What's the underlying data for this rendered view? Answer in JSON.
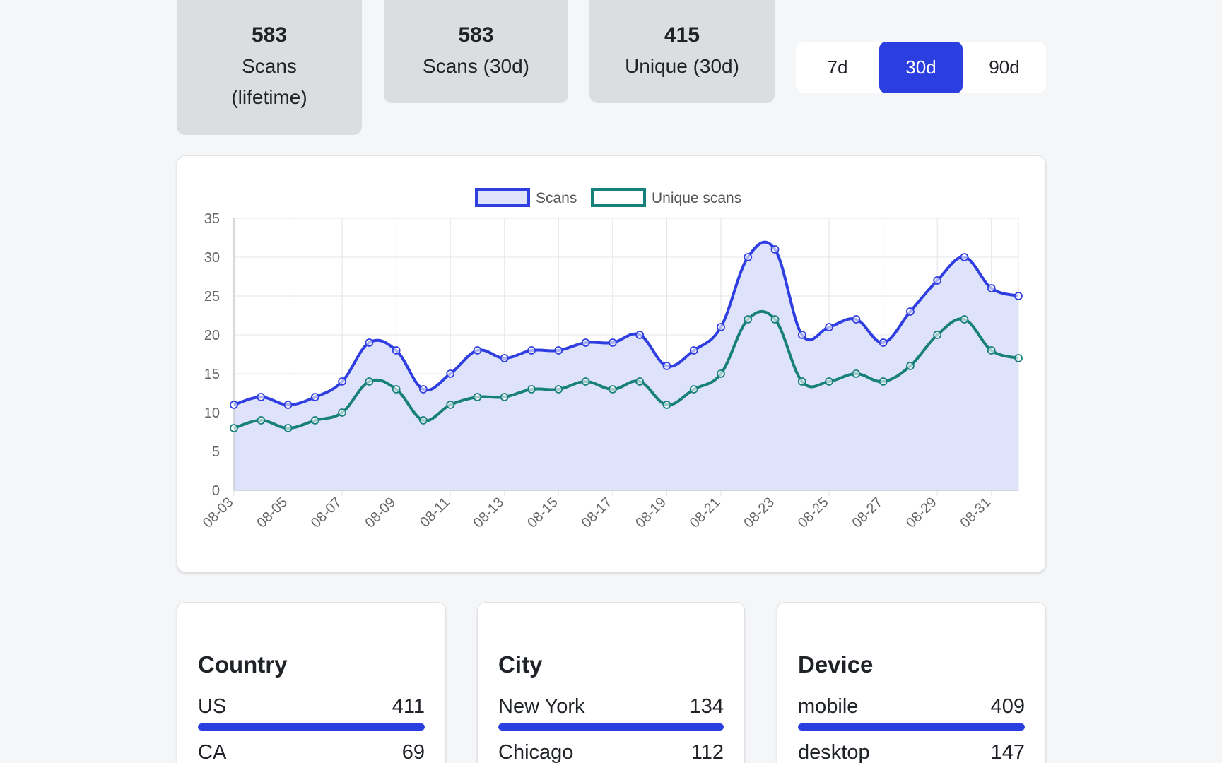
{
  "stats": [
    {
      "value": "583",
      "label": "Scans",
      "label2": "(lifetime)"
    },
    {
      "value": "583",
      "label": "Scans (30d)"
    },
    {
      "value": "415",
      "label": "Unique (30d)"
    }
  ],
  "range": {
    "options": [
      "7d",
      "30d",
      "90d"
    ],
    "selected": "30d"
  },
  "colors": {
    "accent": "#2b3fe0",
    "scans_line": "#2f3ee0",
    "scans_fill": "#dfe2fb",
    "unique_line": "#17807a",
    "card_bg": "#dcdddf"
  },
  "chart_data": {
    "type": "line",
    "x": [
      "08-03",
      "08-04",
      "08-05",
      "08-06",
      "08-07",
      "08-08",
      "08-09",
      "08-10",
      "08-11",
      "08-12",
      "08-13",
      "08-14",
      "08-15",
      "08-16",
      "08-17",
      "08-18",
      "08-19",
      "08-20",
      "08-21",
      "08-22",
      "08-23",
      "08-24",
      "08-25",
      "08-26",
      "08-27",
      "08-28",
      "08-29",
      "08-30",
      "08-31",
      "09-01"
    ],
    "tick_labels": [
      "08-03",
      "08-05",
      "08-07",
      "08-09",
      "08-11",
      "08-13",
      "08-15",
      "08-17",
      "08-19",
      "08-21",
      "08-23",
      "08-25",
      "08-27",
      "08-29",
      "08-31"
    ],
    "series": [
      {
        "name": "Scans",
        "values": [
          11,
          12,
          11,
          12,
          14,
          19,
          18,
          13,
          15,
          18,
          17,
          18,
          18,
          19,
          19,
          20,
          16,
          18,
          21,
          30,
          31,
          20,
          21,
          22,
          19,
          23,
          27,
          30,
          26,
          25
        ],
        "fill": true
      },
      {
        "name": "Unique scans",
        "values": [
          8,
          9,
          8,
          9,
          10,
          14,
          13,
          9,
          11,
          12,
          12,
          13,
          13,
          14,
          13,
          14,
          11,
          13,
          15,
          22,
          22,
          14,
          14,
          15,
          14,
          16,
          20,
          22,
          18,
          17
        ],
        "fill": false
      }
    ],
    "ylim": [
      0,
      35
    ],
    "yticks": [
      0,
      5,
      10,
      15,
      20,
      25,
      30,
      35
    ],
    "grid": true,
    "legend": "top-center"
  },
  "breakdowns": {
    "country": {
      "title": "Country",
      "rows": [
        {
          "label": "US",
          "value": "411",
          "fraction": 1.0
        },
        {
          "label": "CA",
          "value": "69",
          "fraction": 0.17
        }
      ]
    },
    "city": {
      "title": "City",
      "rows": [
        {
          "label": "New York",
          "value": "134",
          "fraction": 1.0
        },
        {
          "label": "Chicago",
          "value": "112",
          "fraction": 0.84
        }
      ]
    },
    "device": {
      "title": "Device",
      "rows": [
        {
          "label": "mobile",
          "value": "409",
          "fraction": 1.0
        },
        {
          "label": "desktop",
          "value": "147",
          "fraction": 0.36
        }
      ]
    }
  }
}
